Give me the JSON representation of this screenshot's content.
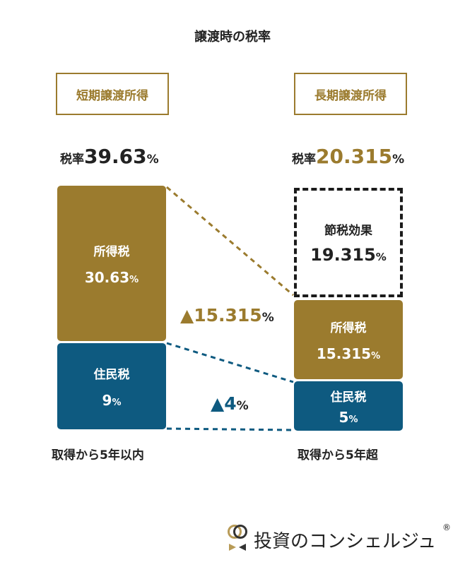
{
  "title": "譲渡時の税率",
  "colors": {
    "gold": "#9b7b2e",
    "blue": "#0e5a80"
  },
  "short_term": {
    "tag": "短期譲渡所得",
    "rate_prefix": "税率",
    "rate_value": "39.63",
    "rate_unit": "%",
    "income_tax_label": "所得税",
    "income_tax_value": "30.63",
    "income_tax_unit": "%",
    "resident_tax_label": "住民税",
    "resident_tax_value": "9",
    "resident_tax_unit": "%",
    "footer": "取得から5年以内"
  },
  "long_term": {
    "tag": "長期譲渡所得",
    "rate_prefix": "税率",
    "rate_value": "20.315",
    "rate_unit": "%",
    "saving_label": "節税効果",
    "saving_value": "19.315",
    "saving_unit": "%",
    "income_tax_label": "所得税",
    "income_tax_value": "15.315",
    "income_tax_unit": "%",
    "resident_tax_label": "住民税",
    "resident_tax_value": "5",
    "resident_tax_unit": "%",
    "footer": "取得から5年超"
  },
  "delta_income": {
    "value": "▲15.315",
    "unit": "%"
  },
  "delta_resident": {
    "value": "▲4",
    "unit": "%"
  },
  "brand": {
    "name": "投資のコンシェルジュ",
    "registered": "®"
  }
}
